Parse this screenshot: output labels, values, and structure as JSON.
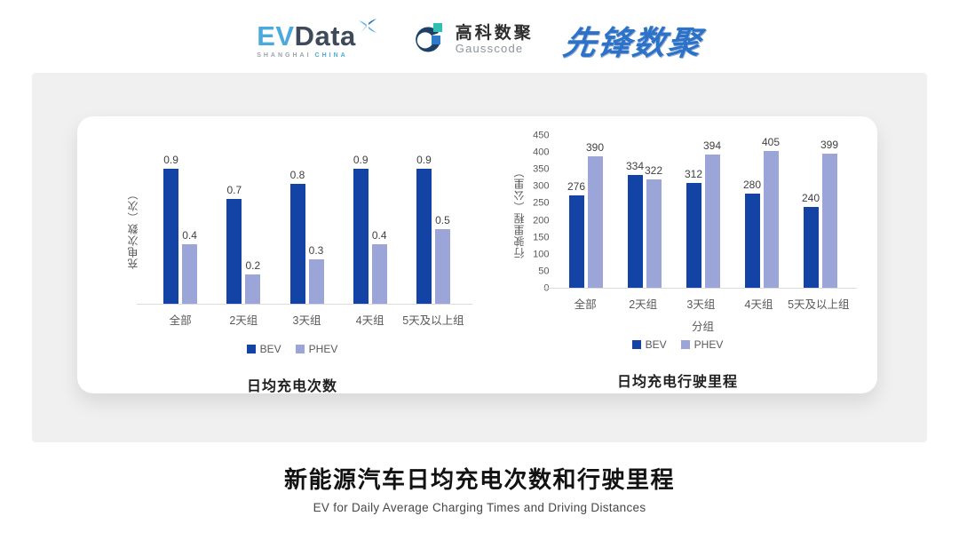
{
  "header": {
    "evdata": {
      "ev": "EV",
      "data": "Data",
      "sub_left": "SHANGHAI",
      "sub_right": "CHINA"
    },
    "gausscode": {
      "cn": "高科数聚",
      "en": "Gausscode"
    },
    "xianfeng": {
      "text": "先锋数聚"
    }
  },
  "colors": {
    "bev": "#1243A5",
    "phev": "#9CA5D8",
    "axis_line": "#dcdcdc",
    "tick_text": "#595959",
    "value_label": "#404040",
    "card_bg": "#f0f0f1",
    "evdata_blue": "#4BA9DE",
    "evdata_slate": "#3D4A5A",
    "gauss_navy": "#1D4166",
    "gauss_teal": "#2FBFB3",
    "gauss_blue": "#2E79C9",
    "xianfeng_blue": "#2B72C8"
  },
  "chart_data": [
    {
      "type": "bar",
      "title": "日均充电次数",
      "xlabel": "",
      "ylabel": "充电次数（次）",
      "categories": [
        "全部",
        "2天组",
        "3天组",
        "4天组",
        "5天及以上组"
      ],
      "series": [
        {
          "name": "BEV",
          "color": "#1243A5",
          "values": [
            0.9,
            0.7,
            0.8,
            0.9,
            0.9
          ]
        },
        {
          "name": "PHEV",
          "color": "#9CA5D8",
          "values": [
            0.4,
            0.2,
            0.3,
            0.4,
            0.5
          ]
        }
      ],
      "ylim": [
        0,
        1.0
      ],
      "yticks": [],
      "grid": false,
      "value_labels": true,
      "legend_position": "bottom"
    },
    {
      "type": "bar",
      "title": "日均充电行驶里程",
      "xlabel": "分组",
      "ylabel": "行驶里程（公里）",
      "categories": [
        "全部",
        "2天组",
        "3天组",
        "4天组",
        "5天及以上组"
      ],
      "series": [
        {
          "name": "BEV",
          "color": "#1243A5",
          "values": [
            276,
            334,
            312,
            280,
            240
          ]
        },
        {
          "name": "PHEV",
          "color": "#9CA5D8",
          "values": [
            390,
            322,
            394,
            405,
            399
          ]
        }
      ],
      "ylim": [
        0,
        450
      ],
      "yticks": [
        0,
        50,
        100,
        150,
        200,
        250,
        300,
        350,
        400,
        450
      ],
      "grid": false,
      "value_labels": true,
      "legend_position": "bottom"
    }
  ],
  "footer": {
    "title": "新能源汽车日均充电次数和行驶里程",
    "subtitle": "EV for Daily Average Charging Times and Driving Distances"
  }
}
